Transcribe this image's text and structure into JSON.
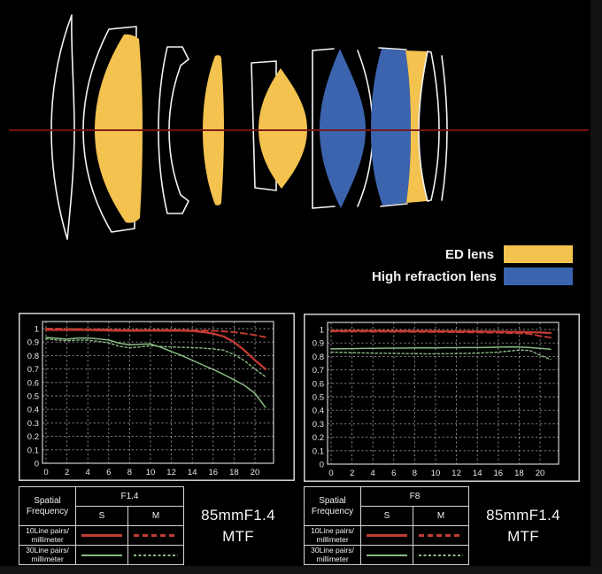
{
  "colors": {
    "ed": "#F3C24F",
    "high_refraction": "#3C64AE",
    "axis_line": "#7A1513",
    "red_curve": "#C23B33",
    "green_curve": "#8ABB84",
    "grid": "#8f8f8f",
    "frame": "#d4d4d4"
  },
  "legend": {
    "items": [
      {
        "label": "ED lens",
        "color_key": "ed"
      },
      {
        "label": "High refraction lens",
        "color_key": "high_refraction"
      }
    ]
  },
  "chart_data": [
    {
      "type": "line",
      "title": "85mmF1.4 MTF",
      "aperture": "F1.4",
      "caption_line1": "85mmF1.4",
      "caption_line2": "MTF",
      "xlabel": "",
      "ylabel": "",
      "xlim": [
        0,
        21.8
      ],
      "ylim": [
        0,
        1.06
      ],
      "grid": true,
      "legend_position": "none",
      "xticks": [
        0,
        2,
        4,
        6,
        8,
        10,
        12,
        14,
        16,
        18,
        20
      ],
      "ytick_labels": [
        "1",
        "0.9",
        "0.8",
        "0.7",
        "0.6",
        "0.5",
        "0.4",
        "0.3",
        "0.2",
        "0.1",
        "0"
      ],
      "x": [
        0,
        1,
        2,
        3,
        4,
        5,
        6,
        7,
        8,
        9,
        10,
        11,
        12,
        13,
        14,
        15,
        16,
        17,
        18,
        19,
        20,
        21
      ],
      "series": [
        {
          "name": "10Line pairs/millimeter S",
          "color_key": "red_curve",
          "dash": "solid",
          "width": 2.3,
          "values": [
            0.99,
            0.99,
            0.99,
            0.99,
            0.99,
            0.988,
            0.986,
            0.985,
            0.985,
            0.985,
            0.986,
            0.985,
            0.985,
            0.984,
            0.982,
            0.975,
            0.963,
            0.942,
            0.9,
            0.838,
            0.765,
            0.7
          ]
        },
        {
          "name": "10Line pairs/millimeter M",
          "color_key": "red_curve",
          "dash": "dashed",
          "width": 1.9,
          "values": [
            1.0,
            1.0,
            0.998,
            0.998,
            0.996,
            0.995,
            0.994,
            0.992,
            0.99,
            0.99,
            0.99,
            0.99,
            0.99,
            0.99,
            0.988,
            0.986,
            0.984,
            0.98,
            0.974,
            0.964,
            0.952,
            0.937
          ]
        },
        {
          "name": "30Line pairs/millimeter S",
          "color_key": "green_curve",
          "dash": "solid",
          "width": 1.5,
          "values": [
            0.935,
            0.928,
            0.922,
            0.93,
            0.931,
            0.924,
            0.915,
            0.892,
            0.88,
            0.884,
            0.886,
            0.862,
            0.83,
            0.8,
            0.765,
            0.73,
            0.697,
            0.66,
            0.62,
            0.578,
            0.52,
            0.415
          ]
        },
        {
          "name": "30Line pairs/millimeter M",
          "color_key": "green_curve",
          "dash": "fine-dashed",
          "width": 1.4,
          "values": [
            0.924,
            0.916,
            0.91,
            0.915,
            0.914,
            0.905,
            0.894,
            0.87,
            0.858,
            0.864,
            0.874,
            0.868,
            0.864,
            0.861,
            0.859,
            0.855,
            0.849,
            0.84,
            0.808,
            0.762,
            0.7,
            0.643
          ]
        }
      ]
    },
    {
      "type": "line",
      "title": "85mmF1.4 MTF",
      "aperture": "F8",
      "caption_line1": "85mmF1.4",
      "caption_line2": "MTF",
      "xlabel": "",
      "ylabel": "",
      "xlim": [
        0,
        21.8
      ],
      "ylim": [
        0,
        1.06
      ],
      "grid": true,
      "legend_position": "none",
      "xticks": [
        0,
        2,
        4,
        6,
        8,
        10,
        12,
        14,
        16,
        18,
        20
      ],
      "ytick_labels": [
        "1",
        "0.9",
        "0.8",
        "0.7",
        "0.6",
        "0.5",
        "0.4",
        "0.3",
        "0.2",
        "0.1",
        "0"
      ],
      "x": [
        0,
        1,
        2,
        3,
        4,
        5,
        6,
        7,
        8,
        9,
        10,
        11,
        12,
        13,
        14,
        15,
        16,
        17,
        18,
        19,
        20,
        21
      ],
      "series": [
        {
          "name": "10Line pairs/millimeter S",
          "color_key": "red_curve",
          "dash": "solid",
          "width": 2.3,
          "values": [
            0.99,
            0.99,
            0.99,
            0.99,
            0.99,
            0.989,
            0.989,
            0.989,
            0.988,
            0.988,
            0.988,
            0.987,
            0.987,
            0.986,
            0.986,
            0.985,
            0.984,
            0.983,
            0.982,
            0.98,
            0.978,
            0.974
          ]
        },
        {
          "name": "10Line pairs/millimeter M",
          "color_key": "red_curve",
          "dash": "dashed",
          "width": 1.9,
          "values": [
            0.986,
            0.985,
            0.985,
            0.985,
            0.984,
            0.984,
            0.983,
            0.983,
            0.982,
            0.982,
            0.981,
            0.981,
            0.98,
            0.979,
            0.978,
            0.977,
            0.976,
            0.974,
            0.972,
            0.968,
            0.952,
            0.94
          ]
        },
        {
          "name": "30Line pairs/millimeter S",
          "color_key": "green_curve",
          "dash": "solid",
          "width": 1.5,
          "values": [
            0.856,
            0.857,
            0.858,
            0.859,
            0.86,
            0.861,
            0.862,
            0.862,
            0.863,
            0.863,
            0.864,
            0.865,
            0.865,
            0.866,
            0.866,
            0.867,
            0.869,
            0.871,
            0.87,
            0.866,
            0.86,
            0.853
          ]
        },
        {
          "name": "30Line pairs/millimeter M",
          "color_key": "green_curve",
          "dash": "fine-dashed",
          "width": 1.4,
          "values": [
            0.832,
            0.83,
            0.828,
            0.826,
            0.825,
            0.824,
            0.823,
            0.822,
            0.821,
            0.82,
            0.82,
            0.821,
            0.822,
            0.823,
            0.825,
            0.828,
            0.832,
            0.84,
            0.847,
            0.845,
            0.81,
            0.778
          ]
        }
      ]
    }
  ],
  "tables": [
    {
      "corner_line1": "Spatial",
      "corner_line2": "Frequency",
      "aperture": "F1.4",
      "columns": [
        "S",
        "M"
      ],
      "rows": [
        {
          "label_line1": "10Line pairs/",
          "label_line2": "millimeter",
          "color_key": "red_curve",
          "s_style": "solid",
          "m_style": "dashed"
        },
        {
          "label_line1": "30Line pairs/",
          "label_line2": "millimeter",
          "color_key": "green_curve",
          "s_style": "solid",
          "m_style": "fine-dashed"
        }
      ]
    },
    {
      "corner_line1": "Spatial",
      "corner_line2": "Frequency",
      "aperture": "F8",
      "columns": [
        "S",
        "M"
      ],
      "rows": [
        {
          "label_line1": "10Line pairs/",
          "label_line2": "millimeter",
          "color_key": "red_curve",
          "s_style": "solid",
          "m_style": "dashed"
        },
        {
          "label_line1": "30Line pairs/",
          "label_line2": "millimeter",
          "color_key": "green_curve",
          "s_style": "solid",
          "m_style": "fine-dashed"
        }
      ]
    }
  ]
}
